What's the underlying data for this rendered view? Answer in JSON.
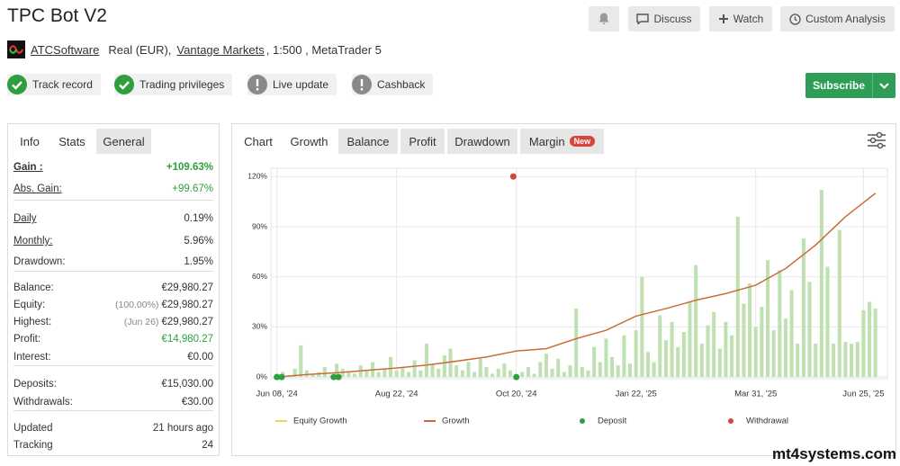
{
  "header": {
    "title": "TPC Bot V2",
    "buttons": [
      "Discuss",
      "Watch",
      "Custom Analysis"
    ],
    "author": "ATCSoftware",
    "account": "Real (EUR),",
    "broker": "Vantage Markets",
    "details": ", 1:500 , MetaTrader 5",
    "badges": [
      {
        "label": "Track record",
        "status": "ok"
      },
      {
        "label": "Trading privileges",
        "status": "ok"
      },
      {
        "label": "Live update",
        "status": "warn"
      },
      {
        "label": "Cashback",
        "status": "warn"
      }
    ],
    "subscribe": "Subscribe"
  },
  "info_tabs": [
    "Info",
    "Stats",
    "General"
  ],
  "stats": [
    [
      {
        "label": "Gain :",
        "value": "+109.63%",
        "green": true,
        "strong": true,
        "underline": true
      },
      {
        "label": "Abs. Gain:",
        "value": "+99.67%",
        "green": true,
        "underline": true
      }
    ],
    [
      {
        "label": "Daily",
        "value": "0.19%",
        "underline": true
      },
      {
        "label": "Monthly:",
        "value": "5.96%",
        "underline": true
      },
      {
        "label": "Drawdown:",
        "value": "1.95%"
      }
    ],
    [
      {
        "label": "Balance:",
        "value": "€29,980.27"
      },
      {
        "label": "Equity:",
        "note": "(100.00%)",
        "value": "€29,980.27"
      },
      {
        "label": "Highest:",
        "note": "(Jun 26)",
        "value": "€29,980.27"
      },
      {
        "label": "Profit:",
        "value": "€14,980.27",
        "green": true
      },
      {
        "label": "Interest:",
        "value": "€0.00"
      }
    ],
    [
      {
        "label": "Deposits:",
        "value": "€15,030.00"
      },
      {
        "label": "Withdrawals:",
        "value": "€30.00"
      }
    ],
    [
      {
        "label": "Updated",
        "value": "21 hours ago"
      },
      {
        "label": "Tracking",
        "value": "24"
      }
    ]
  ],
  "chart_tabs": [
    "Chart",
    "Growth",
    "Balance",
    "Profit",
    "Drawdown",
    "Margin"
  ],
  "new_badge": "New",
  "chart_data": {
    "type": "combo",
    "grid": true,
    "xlim": [
      -1,
      102
    ],
    "ylim": [
      -1,
      125
    ],
    "xticks": [
      {
        "value": 0,
        "label": "Jun 08, '24"
      },
      {
        "value": 20,
        "label": "Aug 22, '24"
      },
      {
        "value": 40,
        "label": "Oct 20, '24"
      },
      {
        "value": 60,
        "label": "Jan 22, '25"
      },
      {
        "value": 80,
        "label": "Mar 31, '25"
      },
      {
        "value": 98,
        "label": "Jun 25, '25"
      }
    ],
    "yticks": [
      {
        "value": 0,
        "label": "0%"
      },
      {
        "value": 30,
        "label": "30%"
      },
      {
        "value": 60,
        "label": "60%"
      },
      {
        "value": 90,
        "label": "90%"
      },
      {
        "value": 120,
        "label": "120%"
      }
    ],
    "bars": {
      "color": "#bfe0b0",
      "x": [
        0,
        1,
        2,
        3,
        4,
        5,
        6,
        7,
        8,
        9,
        10,
        11,
        12,
        13,
        14,
        15,
        16,
        17,
        18,
        19,
        20,
        21,
        22,
        23,
        24,
        25,
        26,
        27,
        28,
        29,
        30,
        31,
        32,
        33,
        34,
        35,
        36,
        37,
        38,
        39,
        40,
        41,
        42,
        43,
        44,
        45,
        46,
        47,
        48,
        49,
        50,
        51,
        52,
        53,
        54,
        55,
        56,
        57,
        58,
        59,
        60,
        61,
        62,
        63,
        64,
        65,
        66,
        67,
        68,
        69,
        70,
        71,
        72,
        73,
        74,
        75,
        76,
        77,
        78,
        79,
        80,
        81,
        82,
        83,
        84,
        85,
        86,
        87,
        88,
        89,
        90,
        91,
        92,
        93,
        94,
        95,
        96,
        97,
        98,
        99,
        100
      ],
      "values": [
        2,
        3,
        1,
        5,
        19,
        4,
        2,
        3,
        6,
        1,
        8,
        5,
        3,
        2,
        7,
        4,
        9,
        3,
        5,
        12,
        4,
        6,
        3,
        10,
        4,
        20,
        8,
        5,
        13,
        17,
        7,
        4,
        9,
        3,
        11,
        6,
        2,
        5,
        8,
        4,
        1,
        3,
        6,
        2,
        9,
        14,
        5,
        11,
        3,
        7,
        41,
        6,
        4,
        18,
        9,
        23,
        12,
        7,
        25,
        8,
        28,
        60,
        15,
        9,
        37,
        22,
        33,
        18,
        27,
        45,
        67,
        20,
        31,
        39,
        17,
        33,
        25,
        96,
        44,
        56,
        30,
        42,
        70,
        28,
        64,
        35,
        52,
        20,
        83,
        57,
        20,
        112,
        66,
        20,
        88,
        21,
        20,
        21,
        40,
        45,
        41
      ]
    },
    "series": [
      {
        "name": "Equity Growth",
        "type": "line",
        "color": "#f2d36b",
        "x": [
          0,
          5,
          10,
          15,
          20,
          25,
          30,
          35,
          40,
          45,
          50,
          55,
          60,
          65,
          70,
          75,
          80,
          85,
          90,
          95,
          100
        ],
        "values": [
          0,
          1.5,
          2.6,
          4,
          5.4,
          7.2,
          9.5,
          12,
          15.6,
          17,
          23,
          28,
          36.5,
          41,
          46,
          50,
          55,
          65,
          79,
          96,
          110
        ]
      },
      {
        "name": "Growth",
        "type": "line",
        "color": "#c8673a",
        "x": [
          0,
          5,
          10,
          15,
          20,
          25,
          30,
          35,
          40,
          45,
          50,
          55,
          60,
          65,
          70,
          75,
          80,
          85,
          90,
          95,
          100
        ],
        "values": [
          0,
          1.5,
          2.6,
          4,
          5.4,
          7.2,
          9.5,
          12,
          15.6,
          17,
          23,
          28,
          36.5,
          41,
          46,
          50,
          55,
          65,
          79,
          96,
          110
        ]
      },
      {
        "name": "Deposit",
        "type": "scatter",
        "color": "#2e9e3e",
        "x": [
          0,
          0.8,
          9.5,
          10.3,
          40
        ],
        "values": [
          0,
          0,
          0,
          0,
          0
        ]
      },
      {
        "name": "Withdrawal",
        "type": "scatter",
        "color": "#d9443a",
        "x": [
          39.5
        ],
        "values": [
          120
        ]
      }
    ]
  },
  "watermark": "mt4systems.com"
}
